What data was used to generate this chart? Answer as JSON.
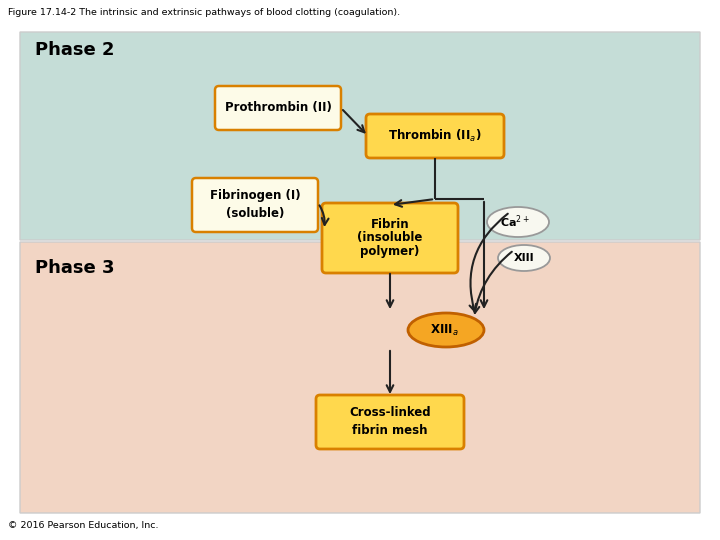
{
  "title": "Figure 17.14-2 The intrinsic and extrinsic pathways of blood clotting (coagulation).",
  "footer": "© 2016 Pearson Education, Inc.",
  "phase2_label": "Phase 2",
  "phase3_label": "Phase 3",
  "phase2_bg": "#c5ddd7",
  "phase3_bg": "#f2d5c4",
  "box_fill_yellow": "#ffd84d",
  "box_fill_light": "#fdfbe8",
  "box_border_orange": "#d98000",
  "ellipse_fill_orange": "#f5a623",
  "ellipse_border_orange": "#c06000",
  "white_ellipse_fill": "#f8f8f0",
  "white_ellipse_border": "#999999",
  "text_dark": "#000000",
  "outer_border": "#bbbbbb",
  "arrow_color": "#222222",
  "panel_border": "#cccccc"
}
